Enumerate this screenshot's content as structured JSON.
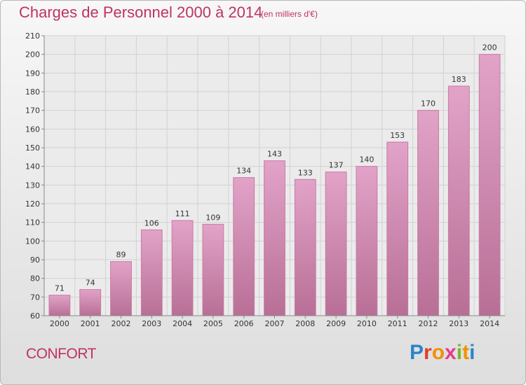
{
  "header": {
    "title": "Charges de Personnel 2000 à 2014",
    "subtitle": "(en milliers d'€)"
  },
  "footer": {
    "city": "CONFORT",
    "logo_text": "Proxiti"
  },
  "colors": {
    "title": "#c0335f",
    "bar_top": "#e2a3c8",
    "bar_bottom": "#b86f96",
    "bar_edge": "#c77aa3",
    "grid": "#d2d2d2",
    "plot_background": "#ebebeb",
    "logo_letters": [
      "#2a86c8",
      "#e33d2b",
      "#f29100",
      "#e83a8c",
      "#7ab72a",
      "#f29100",
      "#2a86c8"
    ]
  },
  "chart_data": {
    "type": "bar",
    "title": "Charges de Personnel 2000 à 2014",
    "subtitle": "(en milliers d'€)",
    "categories": [
      "2000",
      "2001",
      "2002",
      "2003",
      "2004",
      "2005",
      "2006",
      "2007",
      "2008",
      "2009",
      "2010",
      "2011",
      "2012",
      "2013",
      "2014"
    ],
    "values": [
      71,
      74,
      89,
      106,
      111,
      109,
      134,
      143,
      133,
      137,
      140,
      153,
      170,
      183,
      200
    ],
    "ylim": [
      60,
      210
    ],
    "yticks": [
      60,
      70,
      80,
      90,
      100,
      110,
      120,
      130,
      140,
      150,
      160,
      170,
      180,
      190,
      200,
      210
    ],
    "grid": true,
    "data_labels": true,
    "xlabel": "",
    "ylabel": ""
  }
}
